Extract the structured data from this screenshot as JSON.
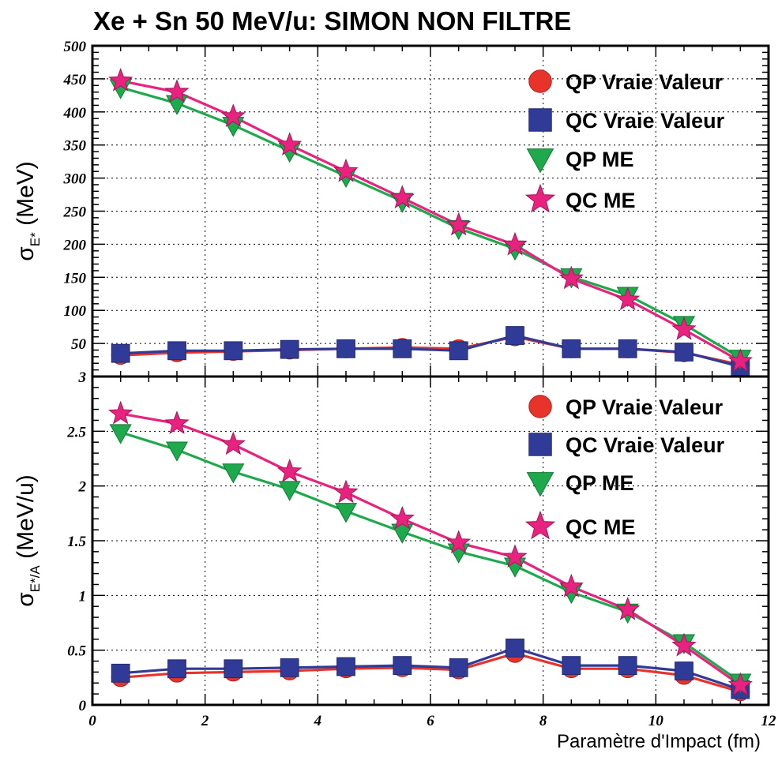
{
  "title": "Xe + Sn 50 MeV/u: SIMON NON FILTRE",
  "xlabel": "Paramètre d'Impact (fm)",
  "colors": {
    "QP_VV": "#e8332a",
    "QC_VV": "#2f3b96",
    "QP_ME": "#1eaa4c",
    "QC_ME": "#e8237f"
  },
  "legend": {
    "QP_VV": "QP Vraie Valeur",
    "QC_VV": "QC Vraie Valeur",
    "QP_ME": "QP ME",
    "QC_ME": "QC ME"
  },
  "chart_data": [
    {
      "type": "line",
      "ylabel": {
        "sigma": "σ",
        "sub": "E*",
        "unit": " (MeV)"
      },
      "xlim": [
        0,
        12
      ],
      "ylim": [
        0,
        500
      ],
      "xticks": [],
      "yticks": [
        "500",
        "450",
        "400",
        "350",
        "300",
        "250",
        "200",
        "150",
        "100",
        "50"
      ],
      "ytick_values": [
        500,
        450,
        400,
        350,
        300,
        250,
        200,
        150,
        100,
        50
      ],
      "grid": true,
      "legend_position": "top-right",
      "x": [
        0.5,
        1.5,
        2.5,
        3.5,
        4.5,
        5.5,
        6.5,
        7.5,
        8.5,
        9.5,
        10.5,
        11.5
      ],
      "series": [
        {
          "key": "QP_VV",
          "name": "QP Vraie Valeur",
          "marker": "circle",
          "values": [
            32,
            36,
            38,
            40,
            42,
            44,
            42,
            60,
            42,
            42,
            36,
            18
          ]
        },
        {
          "key": "QC_VV",
          "name": "QC Vraie Valeur",
          "marker": "square",
          "values": [
            35,
            39,
            39,
            41,
            42,
            42,
            39,
            62,
            42,
            42,
            37,
            15
          ]
        },
        {
          "key": "QP_ME",
          "name": "QP ME",
          "marker": "triangle-down",
          "values": [
            437,
            413,
            380,
            341,
            303,
            265,
            224,
            193,
            151,
            123,
            79,
            28
          ]
        },
        {
          "key": "QC_ME",
          "name": "QC ME",
          "marker": "star",
          "values": [
            447,
            430,
            393,
            350,
            310,
            270,
            229,
            199,
            148,
            116,
            71,
            23
          ]
        }
      ]
    },
    {
      "type": "line",
      "ylabel": {
        "sigma": "σ",
        "sub": "E*/A",
        "unit": " (MeV/u)"
      },
      "xlim": [
        0,
        12
      ],
      "ylim": [
        0,
        3
      ],
      "xticks": [
        "0",
        "2",
        "4",
        "6",
        "8",
        "10",
        "12"
      ],
      "xtick_values": [
        0,
        2,
        4,
        6,
        8,
        10,
        12
      ],
      "yticks": [
        "3",
        "2.5",
        "2",
        "1.5",
        "1",
        "0.5",
        "0"
      ],
      "ytick_values": [
        3,
        2.5,
        2,
        1.5,
        1,
        0.5,
        0
      ],
      "grid": true,
      "legend_position": "top-right",
      "x": [
        0.5,
        1.5,
        2.5,
        3.5,
        4.5,
        5.5,
        6.5,
        7.5,
        8.5,
        9.5,
        10.5,
        11.5
      ],
      "series": [
        {
          "key": "QP_VV",
          "name": "QP Vraie Valeur",
          "marker": "circle",
          "values": [
            0.25,
            0.29,
            0.3,
            0.31,
            0.33,
            0.34,
            0.32,
            0.47,
            0.33,
            0.33,
            0.27,
            0.12
          ]
        },
        {
          "key": "QC_VV",
          "name": "QC Vraie Valeur",
          "marker": "square",
          "values": [
            0.29,
            0.33,
            0.33,
            0.34,
            0.35,
            0.36,
            0.34,
            0.52,
            0.36,
            0.36,
            0.31,
            0.14
          ]
        },
        {
          "key": "QP_ME",
          "name": "QP ME",
          "marker": "triangle-down",
          "values": [
            2.49,
            2.33,
            2.13,
            1.97,
            1.77,
            1.58,
            1.4,
            1.27,
            1.03,
            0.85,
            0.57,
            0.21
          ]
        },
        {
          "key": "QC_ME",
          "name": "QC ME",
          "marker": "star",
          "values": [
            2.66,
            2.57,
            2.38,
            2.13,
            1.94,
            1.7,
            1.48,
            1.35,
            1.08,
            0.87,
            0.54,
            0.18
          ]
        }
      ]
    }
  ]
}
